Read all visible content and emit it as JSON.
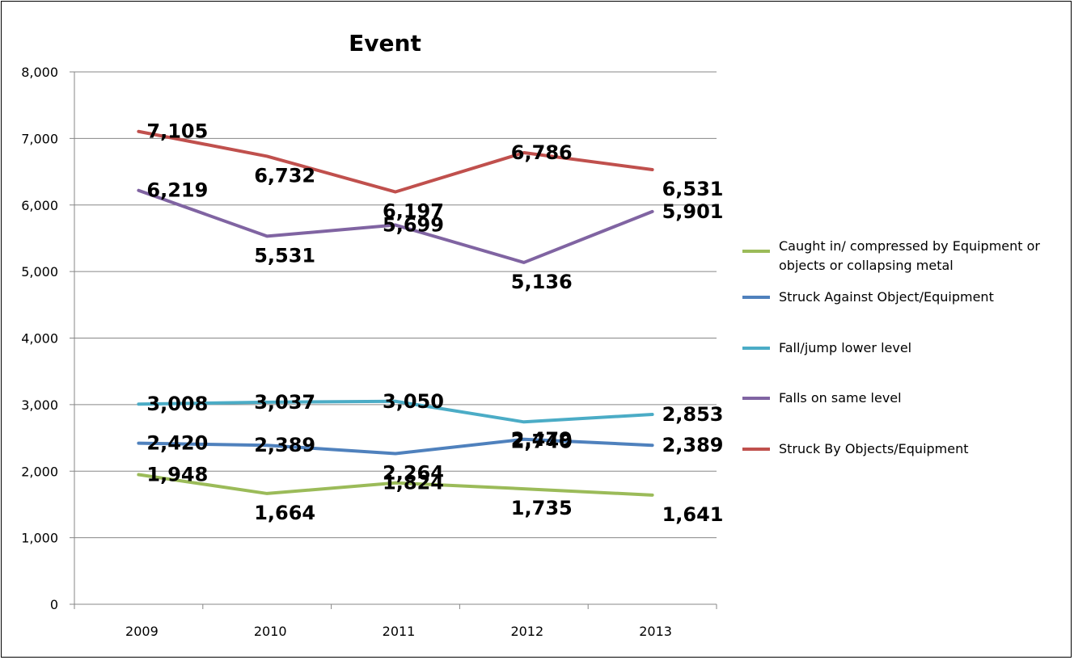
{
  "chart_data": {
    "type": "line",
    "title": "Event",
    "xlabel": "",
    "ylabel": "",
    "x": [
      "2009",
      "2010",
      "2011",
      "2012",
      "2013"
    ],
    "ylim": [
      0,
      8000
    ],
    "yticks": [
      "0",
      "1,000",
      "2,000",
      "3,000",
      "4,000",
      "5,000",
      "6,000",
      "7,000",
      "8,000"
    ],
    "grid": "horizontal",
    "legend_position": "right",
    "series": [
      {
        "name_lines": [
          "Caught in/ compressed by Equipment or",
          "objects or collapsing metal"
        ],
        "color": "#9bbb59",
        "values": [
          1948,
          1664,
          1824,
          1735,
          1641
        ],
        "labels": [
          "1,948",
          "1,664",
          "1,824",
          "1,735",
          "1,641"
        ]
      },
      {
        "name_lines": [
          "Struck Against Object/Equipment"
        ],
        "color": "#4f81bd",
        "values": [
          2420,
          2389,
          2264,
          2479,
          2389
        ],
        "labels": [
          "2,420",
          "2,389",
          "2,264",
          "2,479",
          "2,389"
        ]
      },
      {
        "name_lines": [
          "Fall/jump lower level"
        ],
        "color": "#4bacc6",
        "values": [
          3008,
          3037,
          3050,
          2740,
          2853
        ],
        "labels": [
          "3,008",
          "3,037",
          "3,050",
          "2,740",
          "2,853"
        ]
      },
      {
        "name_lines": [
          "Falls on same level"
        ],
        "color": "#8064a2",
        "values": [
          6219,
          5531,
          5699,
          5136,
          5901
        ],
        "labels": [
          "6,219",
          "5,531",
          "5,699",
          "5,136",
          "5,901"
        ]
      },
      {
        "name_lines": [
          "Struck By Objects/Equipment"
        ],
        "color": "#c0504d",
        "values": [
          7105,
          6732,
          6197,
          6786,
          6531
        ],
        "labels": [
          "7,105",
          "6,732",
          "6,197",
          "6,786",
          "6,531"
        ]
      }
    ]
  }
}
